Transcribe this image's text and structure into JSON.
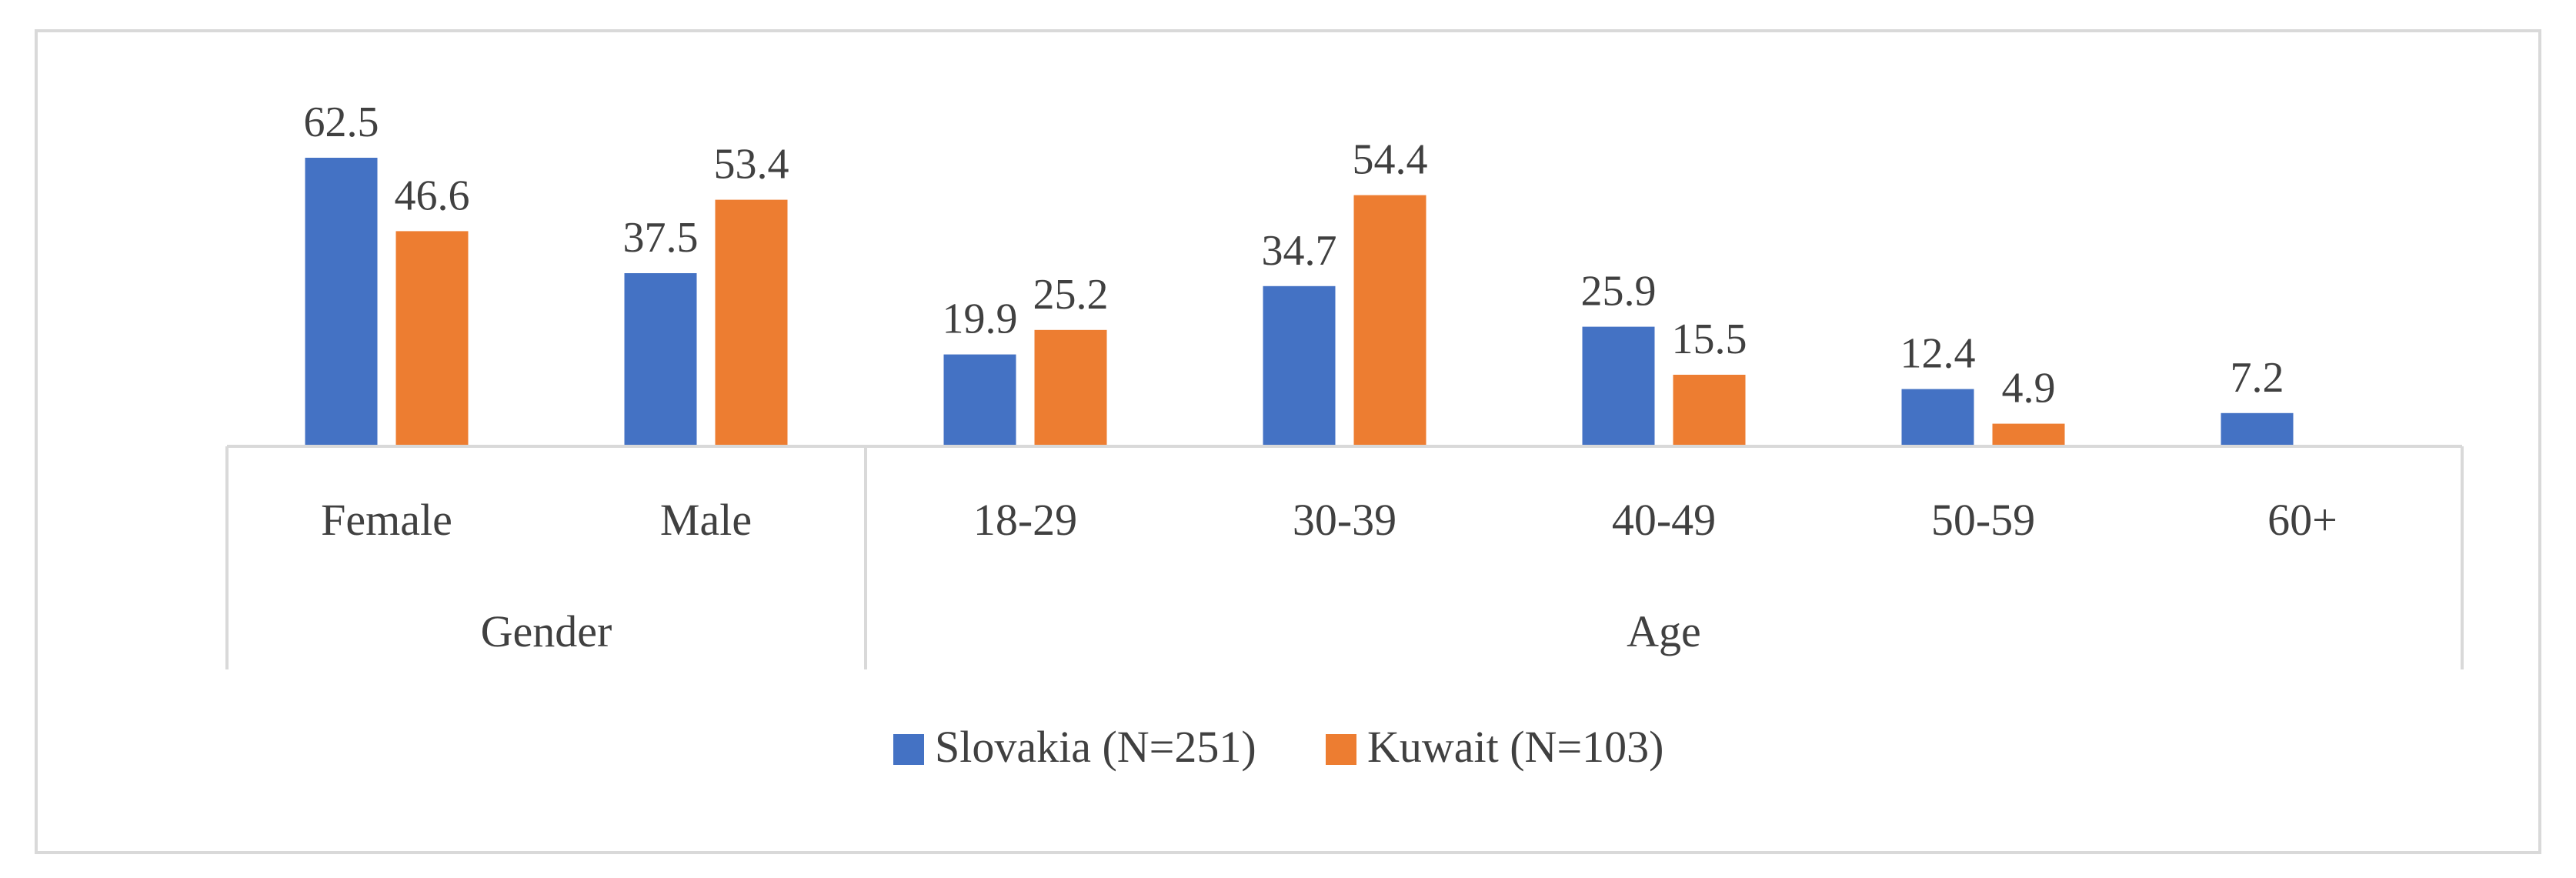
{
  "chart_data": {
    "type": "bar",
    "title": "",
    "xlabel": "",
    "ylabel": "",
    "ylim": [
      0,
      70
    ],
    "grid": false,
    "legend_position": "bottom",
    "categories": [
      "Female",
      "Male",
      "18-29",
      "30-39",
      "40-49",
      "50-59",
      "60+"
    ],
    "groups": [
      {
        "label": "Gender",
        "categories": [
          "Female",
          "Male"
        ]
      },
      {
        "label": "Age",
        "categories": [
          "18-29",
          "30-39",
          "40-49",
          "50-59",
          "60+"
        ]
      }
    ],
    "series": [
      {
        "name": "Slovakia (N=251)",
        "color": "#4472c4",
        "values": [
          62.5,
          37.5,
          19.9,
          34.7,
          25.9,
          12.4,
          7.2
        ],
        "labels": [
          "62.5",
          "37.5",
          "19.9",
          "34.7",
          "25.9",
          "12.4",
          "7.2"
        ]
      },
      {
        "name": "Kuwait (N=103)",
        "color": "#ed7d31",
        "values": [
          46.6,
          53.4,
          25.2,
          54.4,
          15.5,
          4.9,
          null
        ],
        "labels": [
          "46.6",
          "53.4",
          "25.2",
          "54.4",
          "15.5",
          "4.9",
          ""
        ]
      }
    ]
  },
  "colors": {
    "axis": "#d9d9d9",
    "frame": "#d9d9d9",
    "text": "#404040"
  }
}
